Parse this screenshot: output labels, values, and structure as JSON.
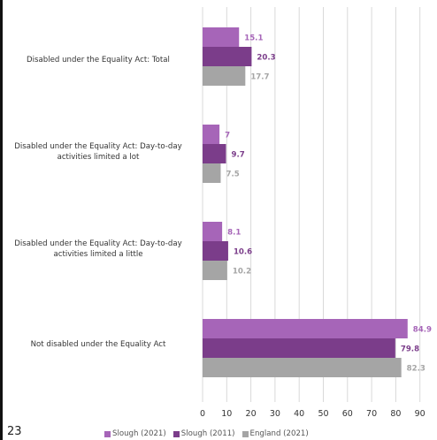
{
  "page_number": "23",
  "colors": {
    "slough_2021": "#a665b8",
    "slough_2011": "#7b3d8a",
    "england_2021": "#a5a5a5",
    "grid": "#d9d9d9",
    "axis_text": "#333333"
  },
  "chart_data": {
    "type": "bar",
    "orientation": "horizontal",
    "categories": [
      "Disabled under the Equality Act: Total",
      "Disabled under the Equality Act: Day-to-day activities limited a lot",
      "Disabled under the Equality Act: Day-to-day activities limited a little",
      "Not disabled under the Equality Act"
    ],
    "series": [
      {
        "name": "Slough (2021)",
        "values": [
          15.1,
          7,
          8.1,
          84.9
        ],
        "labels": [
          "15.1",
          "7",
          "8.1",
          "84.9"
        ]
      },
      {
        "name": "Slough (2011)",
        "values": [
          20.3,
          9.7,
          10.6,
          79.8
        ],
        "labels": [
          "20.3",
          "9.7",
          "10.6",
          "79.8"
        ]
      },
      {
        "name": "England (2021)",
        "values": [
          17.7,
          7.5,
          10.2,
          82.3
        ],
        "labels": [
          "17.7",
          "7.5",
          "10.2",
          "82.3"
        ]
      }
    ],
    "xlim": [
      0,
      90
    ],
    "x_ticks": [
      "0",
      "10",
      "20",
      "30",
      "40",
      "50",
      "60",
      "70",
      "80",
      "90"
    ],
    "grid": true,
    "legend_position": "bottom",
    "title": "",
    "xlabel": "",
    "ylabel": ""
  }
}
